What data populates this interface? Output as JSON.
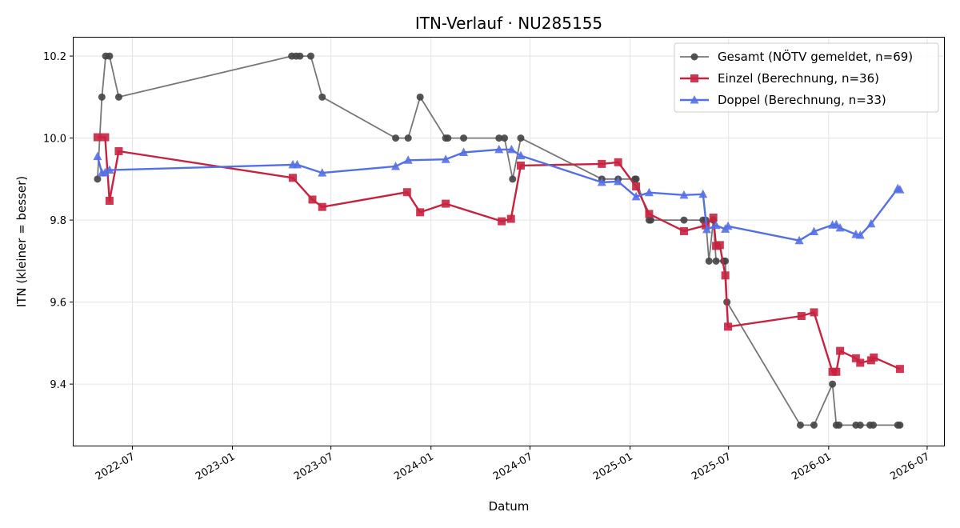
{
  "chart_data": {
    "type": "line",
    "title": "ITN-Verlauf · NU285155",
    "xlabel": "Datum",
    "ylabel": "ITN  (kleiner = besser)",
    "x_axis": "date",
    "xlim": [
      "2022-03-15",
      "2026-08-01"
    ],
    "ylim": [
      9.25,
      10.245
    ],
    "x_ticks": [
      "2022-07-01",
      "2023-01-01",
      "2023-07-01",
      "2024-01-01",
      "2024-07-01",
      "2025-01-01",
      "2025-07-01",
      "2026-01-01",
      "2026-07-01"
    ],
    "x_tick_labels": [
      "2022-07",
      "2023-01",
      "2023-07",
      "2024-01",
      "2024-07",
      "2025-01",
      "2025-07",
      "2026-01",
      "2026-07"
    ],
    "y_ticks": [
      9.4,
      9.6,
      9.8,
      10.0,
      10.2
    ],
    "y_tick_labels": [
      "9.4",
      "9.6",
      "9.8",
      "10.0",
      "10.2"
    ],
    "grid": true,
    "legend_position": "top-right",
    "series": [
      {
        "name": "Gesamt (NÖTV gemeldet, n=69)",
        "color": "#777777",
        "marker": "circle",
        "marker_color": "#444444",
        "points": [
          {
            "x": "2022-04-28",
            "y": 9.9
          },
          {
            "x": "2022-05-06",
            "y": 10.1
          },
          {
            "x": "2022-05-13",
            "y": 10.2
          },
          {
            "x": "2022-05-20",
            "y": 10.2
          },
          {
            "x": "2022-06-06",
            "y": 10.1
          },
          {
            "x": "2023-04-20",
            "y": 10.2
          },
          {
            "x": "2023-04-28",
            "y": 10.2
          },
          {
            "x": "2023-05-05",
            "y": 10.2
          },
          {
            "x": "2023-05-25",
            "y": 10.2
          },
          {
            "x": "2023-06-15",
            "y": 10.1
          },
          {
            "x": "2023-10-28",
            "y": 10.0
          },
          {
            "x": "2023-11-20",
            "y": 10.0
          },
          {
            "x": "2023-12-12",
            "y": 10.1
          },
          {
            "x": "2024-01-28",
            "y": 10.0
          },
          {
            "x": "2024-02-01",
            "y": 10.0
          },
          {
            "x": "2024-03-01",
            "y": 10.0
          },
          {
            "x": "2024-05-05",
            "y": 10.0
          },
          {
            "x": "2024-05-15",
            "y": 10.0
          },
          {
            "x": "2024-05-30",
            "y": 9.9
          },
          {
            "x": "2024-06-14",
            "y": 10.0
          },
          {
            "x": "2024-11-10",
            "y": 9.9
          },
          {
            "x": "2024-12-10",
            "y": 9.9
          },
          {
            "x": "2025-01-10",
            "y": 9.9
          },
          {
            "x": "2025-01-12",
            "y": 9.9
          },
          {
            "x": "2025-02-05",
            "y": 9.8
          },
          {
            "x": "2025-02-08",
            "y": 9.8
          },
          {
            "x": "2025-04-10",
            "y": 9.8
          },
          {
            "x": "2025-05-15",
            "y": 9.8
          },
          {
            "x": "2025-05-20",
            "y": 9.8
          },
          {
            "x": "2025-05-26",
            "y": 9.7
          },
          {
            "x": "2025-06-03",
            "y": 9.8
          },
          {
            "x": "2025-06-08",
            "y": 9.7
          },
          {
            "x": "2025-06-22",
            "y": 9.7
          },
          {
            "x": "2025-06-25",
            "y": 9.7
          },
          {
            "x": "2025-06-28",
            "y": 9.6
          },
          {
            "x": "2025-11-10",
            "y": 9.3
          },
          {
            "x": "2025-12-05",
            "y": 9.3
          },
          {
            "x": "2026-01-08",
            "y": 9.4
          },
          {
            "x": "2026-01-15",
            "y": 9.3
          },
          {
            "x": "2026-01-20",
            "y": 9.3
          },
          {
            "x": "2026-02-20",
            "y": 9.3
          },
          {
            "x": "2026-02-28",
            "y": 9.3
          },
          {
            "x": "2026-03-18",
            "y": 9.3
          },
          {
            "x": "2026-03-24",
            "y": 9.3
          },
          {
            "x": "2026-05-08",
            "y": 9.3
          },
          {
            "x": "2026-05-12",
            "y": 9.3
          }
        ]
      },
      {
        "name": "Einzel (Berechnung, n=36)",
        "color": "#c8223f",
        "marker": "square",
        "marker_color": "#c8223f",
        "points": [
          {
            "x": "2022-04-28",
            "y": 10.002
          },
          {
            "x": "2022-05-12",
            "y": 10.002
          },
          {
            "x": "2022-05-20",
            "y": 9.847
          },
          {
            "x": "2022-06-06",
            "y": 9.968
          },
          {
            "x": "2023-04-22",
            "y": 9.903
          },
          {
            "x": "2023-05-28",
            "y": 9.85
          },
          {
            "x": "2023-06-15",
            "y": 9.832
          },
          {
            "x": "2023-11-18",
            "y": 9.868
          },
          {
            "x": "2023-12-12",
            "y": 9.819
          },
          {
            "x": "2024-01-28",
            "y": 9.84
          },
          {
            "x": "2024-05-10",
            "y": 9.797
          },
          {
            "x": "2024-05-27",
            "y": 9.803
          },
          {
            "x": "2024-06-14",
            "y": 9.933
          },
          {
            "x": "2024-11-10",
            "y": 9.937
          },
          {
            "x": "2024-12-10",
            "y": 9.941
          },
          {
            "x": "2025-01-12",
            "y": 9.882
          },
          {
            "x": "2025-02-05",
            "y": 9.815
          },
          {
            "x": "2025-04-10",
            "y": 9.773
          },
          {
            "x": "2025-05-20",
            "y": 9.787
          },
          {
            "x": "2025-06-03",
            "y": 9.806
          },
          {
            "x": "2025-06-08",
            "y": 9.737
          },
          {
            "x": "2025-06-15",
            "y": 9.739
          },
          {
            "x": "2025-06-25",
            "y": 9.665
          },
          {
            "x": "2025-06-30",
            "y": 9.54
          },
          {
            "x": "2025-11-12",
            "y": 9.566
          },
          {
            "x": "2025-12-05",
            "y": 9.575
          },
          {
            "x": "2026-01-08",
            "y": 9.43
          },
          {
            "x": "2026-01-15",
            "y": 9.43
          },
          {
            "x": "2026-01-22",
            "y": 9.481
          },
          {
            "x": "2026-02-20",
            "y": 9.463
          },
          {
            "x": "2026-02-28",
            "y": 9.452
          },
          {
            "x": "2026-03-20",
            "y": 9.458
          },
          {
            "x": "2026-03-25",
            "y": 9.465
          },
          {
            "x": "2026-05-12",
            "y": 9.437
          }
        ]
      },
      {
        "name": "Doppel (Berechnung, n=33)",
        "color": "#5470e8",
        "marker": "triangle",
        "marker_color": "#5470e8",
        "points": [
          {
            "x": "2022-04-28",
            "y": 9.955
          },
          {
            "x": "2022-05-06",
            "y": 9.915
          },
          {
            "x": "2022-05-12",
            "y": 9.916
          },
          {
            "x": "2022-05-20",
            "y": 9.922
          },
          {
            "x": "2023-04-22",
            "y": 9.935
          },
          {
            "x": "2023-04-30",
            "y": 9.935
          },
          {
            "x": "2023-06-15",
            "y": 9.915
          },
          {
            "x": "2023-10-28",
            "y": 9.931
          },
          {
            "x": "2023-11-20",
            "y": 9.946
          },
          {
            "x": "2024-01-28",
            "y": 9.948
          },
          {
            "x": "2024-03-01",
            "y": 9.965
          },
          {
            "x": "2024-05-05",
            "y": 9.972
          },
          {
            "x": "2024-05-28",
            "y": 9.972
          },
          {
            "x": "2024-06-14",
            "y": 9.957
          },
          {
            "x": "2024-11-10",
            "y": 9.892
          },
          {
            "x": "2024-12-10",
            "y": 9.894
          },
          {
            "x": "2025-01-12",
            "y": 9.857
          },
          {
            "x": "2025-02-05",
            "y": 9.867
          },
          {
            "x": "2025-04-10",
            "y": 9.861
          },
          {
            "x": "2025-05-15",
            "y": 9.863
          },
          {
            "x": "2025-05-22",
            "y": 9.777
          },
          {
            "x": "2025-06-08",
            "y": 9.787
          },
          {
            "x": "2025-06-25",
            "y": 9.778
          },
          {
            "x": "2025-06-30",
            "y": 9.785
          },
          {
            "x": "2025-11-08",
            "y": 9.75
          },
          {
            "x": "2025-12-05",
            "y": 9.772
          },
          {
            "x": "2026-01-08",
            "y": 9.788
          },
          {
            "x": "2026-01-15",
            "y": 9.789
          },
          {
            "x": "2026-01-22",
            "y": 9.781
          },
          {
            "x": "2026-02-20",
            "y": 9.765
          },
          {
            "x": "2026-02-28",
            "y": 9.763
          },
          {
            "x": "2026-03-20",
            "y": 9.791
          },
          {
            "x": "2026-05-08",
            "y": 9.877
          },
          {
            "x": "2026-05-12",
            "y": 9.874
          }
        ]
      }
    ]
  }
}
